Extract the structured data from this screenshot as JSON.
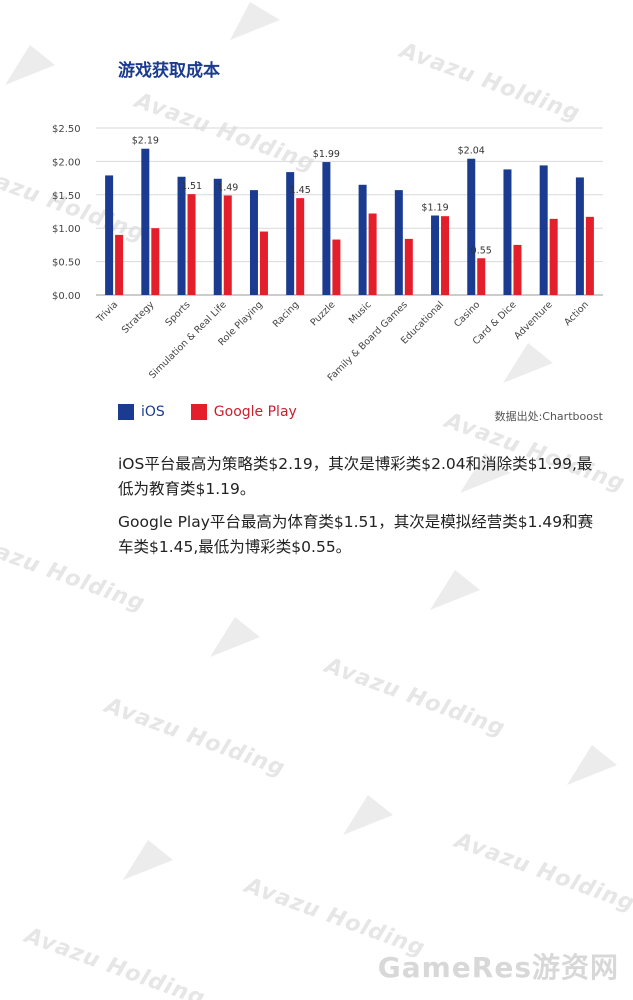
{
  "title": "游戏获取成本",
  "legend": {
    "ios_label": "iOS",
    "gp_label": "Google Play",
    "ios_color": "#1a3b8f",
    "gp_color": "#e41e2a"
  },
  "source": "数据出处:Chartboost",
  "paragraphs": [
    "iOS平台最高为策略类$2.19，其次是博彩类$2.04和消除类$1.99,最低为教育类$1.19。",
    "Google Play平台最高为体育类$1.51，其次是模拟经营类$1.49和赛车类$1.45,最低为博彩类$0.55。"
  ],
  "watermark": "Avazu Holding",
  "footer_watermark": "GameRes游资网",
  "chart_data": {
    "type": "bar",
    "categories": [
      "Trivia",
      "Strategy",
      "Sports",
      "Simulation & Real Life",
      "Role Playing",
      "Racing",
      "Puzzle",
      "Music",
      "Family & Board Games",
      "Educational",
      "Casino",
      "Card & Dice",
      "Adventure",
      "Action"
    ],
    "series": [
      {
        "name": "iOS",
        "color": "#1a3b8f",
        "values": [
          1.79,
          2.19,
          1.77,
          1.74,
          1.57,
          1.84,
          1.99,
          1.65,
          1.57,
          1.19,
          2.04,
          1.88,
          1.94,
          1.76
        ]
      },
      {
        "name": "Google Play",
        "color": "#e41e2a",
        "values": [
          0.9,
          1.0,
          1.51,
          1.49,
          0.95,
          1.45,
          0.83,
          1.22,
          0.84,
          1.18,
          0.55,
          0.75,
          1.14,
          1.17
        ]
      }
    ],
    "data_labels": [
      {
        "category": "Strategy",
        "series": "iOS",
        "text": "$2.19"
      },
      {
        "category": "Sports",
        "series": "Google Play",
        "text": "1.51"
      },
      {
        "category": "Simulation & Real Life",
        "series": "Google Play",
        "text": "1.49"
      },
      {
        "category": "Racing",
        "series": "Google Play",
        "text": "1.45"
      },
      {
        "category": "Puzzle",
        "series": "iOS",
        "text": "$1.99"
      },
      {
        "category": "Educational",
        "series": "iOS",
        "text": "$1.19"
      },
      {
        "category": "Casino",
        "series": "iOS",
        "text": "$2.04"
      },
      {
        "category": "Casino",
        "series": "Google Play",
        "text": "0.55"
      }
    ],
    "yticks": [
      "$0.00",
      "$0.50",
      "$1.00",
      "$1.50",
      "$2.00",
      "$2.50"
    ],
    "ylim": [
      0,
      2.5
    ],
    "grid": true,
    "legend_position": "bottom-left"
  }
}
